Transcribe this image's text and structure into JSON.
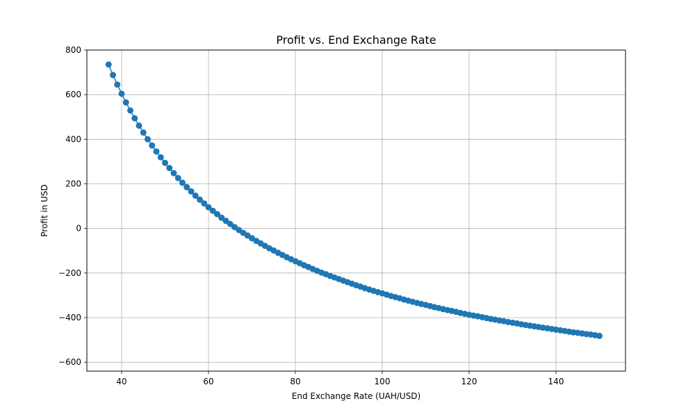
{
  "chart_data": {
    "type": "line",
    "title": "Profit vs. End Exchange Rate",
    "xlabel": "End Exchange Rate (UAH/USD)",
    "ylabel": "Profit in USD",
    "xlim": [
      32,
      156
    ],
    "ylim": [
      -640,
      800
    ],
    "xticks": [
      40,
      60,
      80,
      100,
      120,
      140
    ],
    "yticks": [
      800,
      600,
      400,
      200,
      0,
      -200,
      -400,
      -600
    ],
    "ytick_labels": [
      "800",
      "600",
      "400",
      "200",
      "0",
      "−200",
      "−400",
      "−600"
    ],
    "grid": true,
    "marker": "circle",
    "series": [
      {
        "color": "#1f77b4",
        "x": [
          37,
          38,
          39,
          40,
          41,
          42,
          43,
          44,
          45,
          46,
          47,
          48,
          49,
          50,
          51,
          52,
          53,
          54,
          55,
          56,
          57,
          58,
          59,
          60,
          61,
          62,
          63,
          64,
          65,
          66,
          67,
          68,
          69,
          70,
          71,
          72,
          73,
          74,
          75,
          76,
          77,
          78,
          79,
          80,
          81,
          82,
          83,
          84,
          85,
          86,
          87,
          88,
          89,
          90,
          91,
          92,
          93,
          94,
          95,
          96,
          97,
          98,
          99,
          100,
          101,
          102,
          103,
          104,
          105,
          106,
          107,
          108,
          109,
          110,
          111,
          112,
          113,
          114,
          115,
          116,
          117,
          118,
          119,
          120,
          121,
          122,
          123,
          124,
          125,
          126,
          127,
          128,
          129,
          130,
          131,
          132,
          133,
          134,
          135,
          136,
          137,
          138,
          139,
          140,
          141,
          142,
          143,
          144,
          145,
          146,
          147,
          148,
          149,
          150
        ],
        "y": [
          735,
          688,
          645,
          604,
          565,
          529,
          494,
          461,
          430,
          400,
          372,
          345,
          319,
          294,
          271,
          248,
          226,
          205,
          185,
          166,
          147,
          129,
          112,
          95,
          79,
          64,
          48,
          34,
          20,
          6,
          -7,
          -20,
          -32,
          -44,
          -56,
          -67,
          -78,
          -89,
          -99,
          -109,
          -119,
          -129,
          -138,
          -147,
          -156,
          -165,
          -173,
          -182,
          -190,
          -198,
          -205,
          -213,
          -220,
          -227,
          -234,
          -241,
          -248,
          -255,
          -261,
          -268,
          -274,
          -280,
          -286,
          -291,
          -297,
          -303,
          -308,
          -313,
          -319,
          -324,
          -329,
          -334,
          -339,
          -343,
          -348,
          -353,
          -357,
          -362,
          -366,
          -370,
          -374,
          -379,
          -383,
          -387,
          -391,
          -394,
          -398,
          -402,
          -406,
          -409,
          -413,
          -416,
          -420,
          -423,
          -426,
          -430,
          -433,
          -436,
          -439,
          -442,
          -445,
          -448,
          -451,
          -454,
          -457,
          -460,
          -463,
          -466,
          -468,
          -471,
          -474,
          -476,
          -479,
          -482
        ]
      }
    ]
  }
}
